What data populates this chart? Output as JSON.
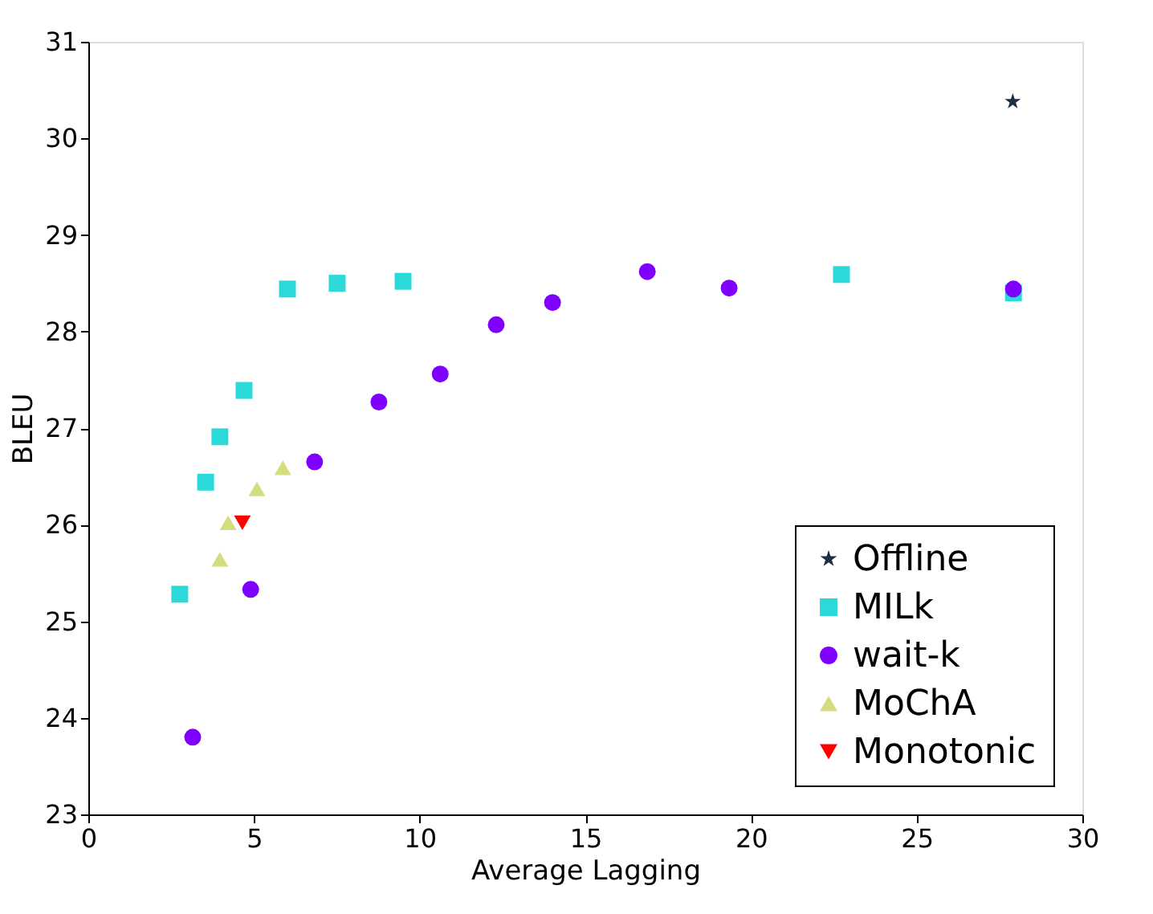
{
  "chart_data": {
    "type": "scatter",
    "xlabel": "Average Lagging",
    "ylabel": "BLEU",
    "xlim": [
      0,
      30
    ],
    "ylim": [
      23,
      31
    ],
    "xticks": [
      0,
      5,
      10,
      15,
      20,
      25,
      30
    ],
    "yticks": [
      23,
      24,
      25,
      26,
      27,
      28,
      29,
      30,
      31
    ],
    "grid": false,
    "legend": "bottom right",
    "series": [
      {
        "name": "Offline",
        "color": "#1f2d45",
        "marker": "star",
        "x": [
          27.9
        ],
        "values": [
          30.38
        ]
      },
      {
        "name": "MILk",
        "color": "#2bd9d9",
        "marker": "square",
        "x": [
          2.76,
          3.54,
          3.97,
          4.7,
          6.01,
          7.51,
          9.5,
          22.73,
          27.92
        ],
        "values": [
          25.28,
          26.44,
          26.91,
          27.39,
          28.44,
          28.5,
          28.52,
          28.59,
          28.4
        ]
      },
      {
        "name": "wait-k",
        "color": "#7f00ff",
        "marker": "circle",
        "x": [
          3.15,
          4.9,
          6.83,
          8.77,
          10.62,
          12.31,
          14.01,
          16.87,
          19.34,
          27.92
        ],
        "values": [
          23.8,
          25.33,
          26.65,
          27.27,
          27.56,
          28.07,
          28.3,
          28.62,
          28.45,
          28.44
        ]
      },
      {
        "name": "MoChA",
        "color": "#d4dd80",
        "marker": "triangle",
        "x": [
          3.97,
          4.22,
          5.09,
          5.87
        ],
        "values": [
          25.64,
          26.02,
          26.37,
          26.59
        ]
      },
      {
        "name": "Monotonic",
        "color": "#ff0000",
        "marker": "triangle-down",
        "x": [
          4.65
        ],
        "values": [
          26.02
        ]
      }
    ]
  }
}
